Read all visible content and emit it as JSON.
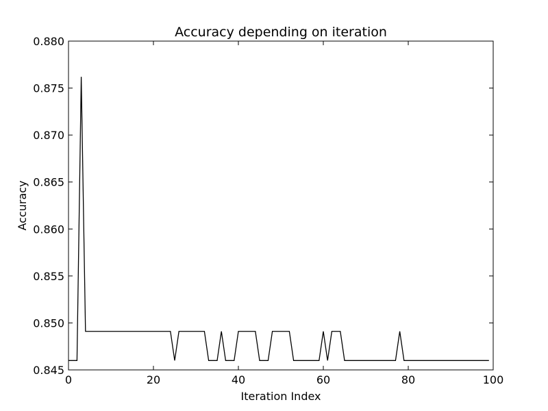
{
  "chart_data": {
    "type": "line",
    "title": "Accuracy depending on iteration",
    "xlabel": "Iteration Index",
    "ylabel": "Accuracy",
    "xlim": [
      0,
      100
    ],
    "ylim": [
      0.845,
      0.88
    ],
    "xticks": [
      0,
      20,
      40,
      60,
      80,
      100
    ],
    "xtick_labels": [
      "0",
      "20",
      "40",
      "60",
      "80",
      "100"
    ],
    "yticks": [
      0.845,
      0.85,
      0.855,
      0.86,
      0.865,
      0.87,
      0.875,
      0.88
    ],
    "ytick_labels": [
      "0.845",
      "0.850",
      "0.855",
      "0.860",
      "0.865",
      "0.870",
      "0.875",
      "0.880"
    ],
    "grid": false,
    "line_color": "#000000",
    "series": [
      {
        "name": "accuracy",
        "x": [
          0,
          1,
          2,
          3,
          4,
          5,
          6,
          7,
          8,
          9,
          10,
          11,
          12,
          13,
          14,
          15,
          16,
          17,
          18,
          19,
          20,
          21,
          22,
          23,
          24,
          25,
          26,
          27,
          28,
          29,
          30,
          31,
          32,
          33,
          34,
          35,
          36,
          37,
          38,
          39,
          40,
          41,
          42,
          43,
          44,
          45,
          46,
          47,
          48,
          49,
          50,
          51,
          52,
          53,
          54,
          55,
          56,
          57,
          58,
          59,
          60,
          61,
          62,
          63,
          64,
          65,
          66,
          67,
          68,
          69,
          70,
          71,
          72,
          73,
          74,
          75,
          76,
          77,
          78,
          79,
          80,
          81,
          82,
          83,
          84,
          85,
          86,
          87,
          88,
          89,
          90,
          91,
          92,
          93,
          94,
          95,
          96,
          97,
          98,
          99
        ],
        "values": [
          0.846,
          0.846,
          0.846,
          0.8762,
          0.8491,
          0.8491,
          0.8491,
          0.8491,
          0.8491,
          0.8491,
          0.8491,
          0.8491,
          0.8491,
          0.8491,
          0.8491,
          0.8491,
          0.8491,
          0.8491,
          0.8491,
          0.8491,
          0.8491,
          0.8491,
          0.8491,
          0.8491,
          0.8491,
          0.846,
          0.8491,
          0.8491,
          0.8491,
          0.8491,
          0.8491,
          0.8491,
          0.8491,
          0.846,
          0.846,
          0.846,
          0.8491,
          0.846,
          0.846,
          0.846,
          0.8491,
          0.8491,
          0.8491,
          0.8491,
          0.8491,
          0.846,
          0.846,
          0.846,
          0.8491,
          0.8491,
          0.8491,
          0.8491,
          0.8491,
          0.846,
          0.846,
          0.846,
          0.846,
          0.846,
          0.846,
          0.846,
          0.8491,
          0.846,
          0.8491,
          0.8491,
          0.8491,
          0.846,
          0.846,
          0.846,
          0.846,
          0.846,
          0.846,
          0.846,
          0.846,
          0.846,
          0.846,
          0.846,
          0.846,
          0.846,
          0.8491,
          0.846,
          0.846,
          0.846,
          0.846,
          0.846,
          0.846,
          0.846,
          0.846,
          0.846,
          0.846,
          0.846,
          0.846,
          0.846,
          0.846,
          0.846,
          0.846,
          0.846,
          0.846,
          0.846,
          0.846,
          0.846
        ]
      }
    ]
  }
}
